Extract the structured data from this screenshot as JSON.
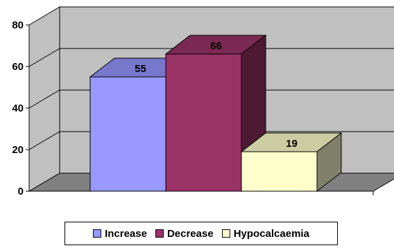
{
  "chart_data": {
    "type": "bar",
    "style": "3d-clustered",
    "categories": [
      ""
    ],
    "series": [
      {
        "name": "Increase",
        "values": [
          55
        ],
        "color": "#9999ff",
        "top_color": "#7777cc",
        "side_color": "#5c5c99"
      },
      {
        "name": "Decrease",
        "values": [
          66
        ],
        "color": "#993366",
        "top_color": "#7a2952",
        "side_color": "#4d1a33"
      },
      {
        "name": "Hypocalcaemia",
        "values": [
          19
        ],
        "color": "#ffffcc",
        "top_color": "#cccca3",
        "side_color": "#80806a"
      }
    ],
    "data_labels": [
      "55",
      "66",
      "19"
    ],
    "ylim": [
      0,
      80
    ],
    "yticks": [
      0,
      20,
      40,
      60,
      80
    ],
    "grid": true,
    "wall_color": "#c0c0c0",
    "floor_color": "#808080",
    "legend_position": "bottom"
  }
}
